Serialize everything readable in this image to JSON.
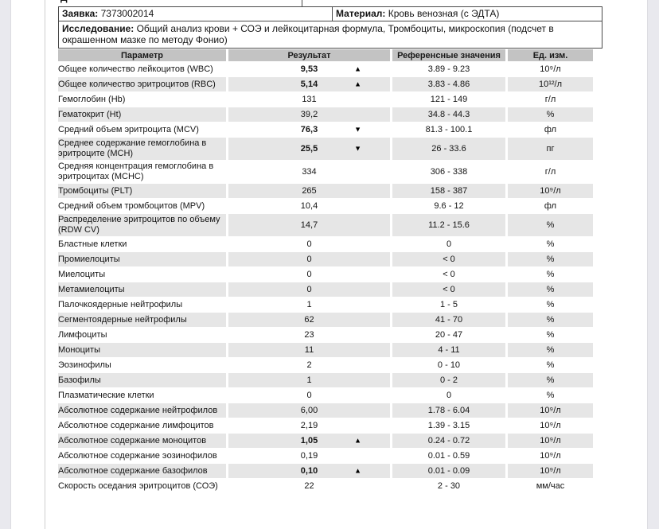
{
  "page": {
    "top_cut_fragment": "Д",
    "request": {
      "label": "Заявка:",
      "value": "7373002014"
    },
    "material": {
      "label": "Материал:",
      "value": "Кровь венозная (с ЭДТА)"
    },
    "study": {
      "label": "Исследование:",
      "value": "Общий анализ крови + СОЭ и лейкоцитарная формула, Тромбоциты, микроскопия (подсчет в окрашенном мазке по методу Фонио)"
    }
  },
  "table": {
    "headers": [
      "Параметр",
      "Результат",
      "Референсные значения",
      "Ед. изм."
    ],
    "rows": [
      {
        "name": "Общее количество лейкоцитов (WBC)",
        "result": "9,53",
        "bold": true,
        "flag": "up",
        "ref": "3.89 - 9.23",
        "unit": "10⁹/л"
      },
      {
        "name": "Общее количество эритроцитов (RBC)",
        "result": "5,14",
        "bold": true,
        "flag": "up",
        "ref": "3.83 - 4.86",
        "unit": "10¹²/л"
      },
      {
        "name": "Гемоглобин (Hb)",
        "result": "131",
        "bold": false,
        "flag": "",
        "ref": "121 - 149",
        "unit": "г/л"
      },
      {
        "name": "Гематокрит (Ht)",
        "result": "39,2",
        "bold": false,
        "flag": "",
        "ref": "34.8 - 44.3",
        "unit": "%"
      },
      {
        "name": "Средний объем эритроцита (MCV)",
        "result": "76,3",
        "bold": true,
        "flag": "down",
        "ref": "81.3 - 100.1",
        "unit": "фл"
      },
      {
        "name": "Среднее содержание гемоглобина в эритроците (MCH)",
        "result": "25,5",
        "bold": true,
        "flag": "down",
        "ref": "26 - 33.6",
        "unit": "пг"
      },
      {
        "name": "Средняя концентрация гемоглобина в эритроцитах (MCHC)",
        "result": "334",
        "bold": false,
        "flag": "",
        "ref": "306 - 338",
        "unit": "г/л"
      },
      {
        "name": "Тромбоциты (PLT)",
        "result": "265",
        "bold": false,
        "flag": "",
        "ref": "158 - 387",
        "unit": "10⁹/л"
      },
      {
        "name": "Средний объем тромбоцитов (MPV)",
        "result": "10,4",
        "bold": false,
        "flag": "",
        "ref": "9.6 - 12",
        "unit": "фл"
      },
      {
        "name": "Распределение эритроцитов по объему (RDW CV)",
        "result": "14,7",
        "bold": false,
        "flag": "",
        "ref": "11.2 - 15.6",
        "unit": "%"
      },
      {
        "name": "Бластные клетки",
        "result": "0",
        "bold": false,
        "flag": "",
        "ref": "0",
        "unit": "%"
      },
      {
        "name": "Промиелоциты",
        "result": "0",
        "bold": false,
        "flag": "",
        "ref": "< 0",
        "unit": "%"
      },
      {
        "name": "Миелоциты",
        "result": "0",
        "bold": false,
        "flag": "",
        "ref": "< 0",
        "unit": "%"
      },
      {
        "name": "Метамиелоциты",
        "result": "0",
        "bold": false,
        "flag": "",
        "ref": "< 0",
        "unit": "%"
      },
      {
        "name": "Палочкоядерные нейтрофилы",
        "result": "1",
        "bold": false,
        "flag": "",
        "ref": "1 - 5",
        "unit": "%"
      },
      {
        "name": "Сегментоядерные нейтрофилы",
        "result": "62",
        "bold": false,
        "flag": "",
        "ref": "41 - 70",
        "unit": "%"
      },
      {
        "name": "Лимфоциты",
        "result": "23",
        "bold": false,
        "flag": "",
        "ref": "20 - 47",
        "unit": "%"
      },
      {
        "name": "Моноциты",
        "result": "11",
        "bold": false,
        "flag": "",
        "ref": "4 - 11",
        "unit": "%"
      },
      {
        "name": "Эозинофилы",
        "result": "2",
        "bold": false,
        "flag": "",
        "ref": "0 - 10",
        "unit": "%"
      },
      {
        "name": "Базофилы",
        "result": "1",
        "bold": false,
        "flag": "",
        "ref": "0 - 2",
        "unit": "%"
      },
      {
        "name": "Плазматические клетки",
        "result": "0",
        "bold": false,
        "flag": "",
        "ref": "0",
        "unit": "%"
      },
      {
        "name": "Абсолютное содержание нейтрофилов",
        "result": "6,00",
        "bold": false,
        "flag": "",
        "ref": "1.78 - 6.04",
        "unit": "10⁹/л"
      },
      {
        "name": "Абсолютное содержание лимфоцитов",
        "result": "2,19",
        "bold": false,
        "flag": "",
        "ref": "1.39 - 3.15",
        "unit": "10⁹/л"
      },
      {
        "name": "Абсолютное содержание моноцитов",
        "result": "1,05",
        "bold": true,
        "flag": "up",
        "ref": "0.24 - 0.72",
        "unit": "10⁹/л"
      },
      {
        "name": "Абсолютное содержание эозинофилов",
        "result": "0,19",
        "bold": false,
        "flag": "",
        "ref": "0.01 - 0.59",
        "unit": "10⁹/л"
      },
      {
        "name": "Абсолютное содержание базофилов",
        "result": "0,10",
        "bold": true,
        "flag": "up",
        "ref": "0.01 - 0.09",
        "unit": "10⁹/л"
      },
      {
        "name": "Скорость оседания эритроцитов (СОЭ)",
        "result": "22",
        "bold": false,
        "flag": "",
        "ref": "2 - 30",
        "unit": "мм/час"
      }
    ]
  }
}
